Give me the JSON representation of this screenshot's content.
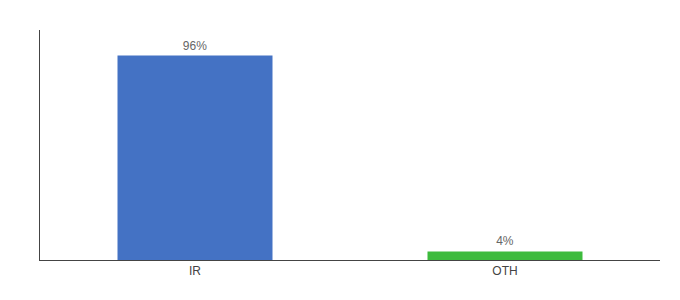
{
  "chart_data": {
    "type": "bar",
    "categories": [
      "IR",
      "OTH"
    ],
    "values": [
      96,
      4
    ],
    "value_labels": [
      "96%",
      "4%"
    ],
    "data_labels": true,
    "colors": [
      "#4472c4",
      "#3dbb3d"
    ],
    "ylim": [
      0,
      108
    ],
    "yticks": [],
    "tick_labels": "x",
    "grid": false
  }
}
